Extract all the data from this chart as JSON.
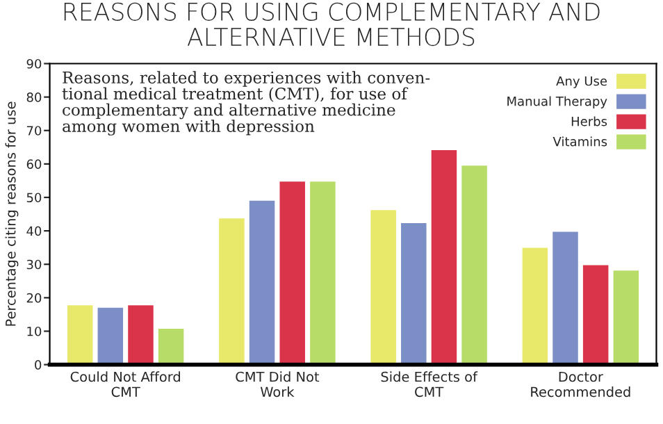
{
  "chart_data": {
    "type": "bar",
    "title": "REASONS FOR USING COMPLEMENTARY AND\nALTERNATIVE METHODS",
    "ylabel": "Percentage citing reasons for use",
    "annotations": [
      "Reasons, related to experiences with conven-\ntional medical treatment (CMT), for use of\ncomplementary and alternative medicine\namong women with depression"
    ],
    "categories": [
      "Could Not Afford\nCMT",
      "CMT Did Not\nWork",
      "Side Effects of\nCMT",
      "Doctor\nRecommended"
    ],
    "series": [
      {
        "name": "Any Use",
        "color": "#e8e86a",
        "values": [
          18,
          44,
          46.5,
          35.2
        ]
      },
      {
        "name": "Manual Therapy",
        "color": "#7b8fc6",
        "values": [
          17.3,
          49.3,
          42.6,
          40
        ]
      },
      {
        "name": "Herbs",
        "color": "#d9344a",
        "values": [
          18,
          55,
          64.4,
          30
        ]
      },
      {
        "name": "Vitamins",
        "color": "#b8dc68",
        "values": [
          11,
          55,
          59.8,
          28.4
        ]
      }
    ],
    "ylim": [
      0,
      90
    ],
    "yticks": [
      0,
      10,
      20,
      30,
      40,
      50,
      60,
      70,
      80,
      90
    ],
    "grid": false,
    "legend": "top right"
  }
}
